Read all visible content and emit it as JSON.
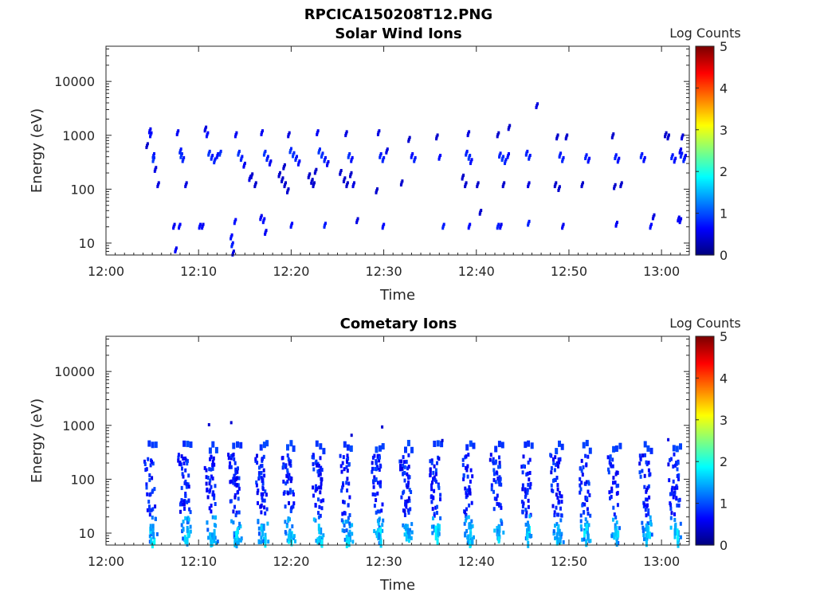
{
  "figure_title": "RPCICA150208T12.PNG",
  "colormap": "jet",
  "chart_data": [
    {
      "type": "heatmap",
      "title": "Solar Wind Ions",
      "xlabel": "Time",
      "ylabel": "Energy (eV)",
      "x_ticks": [
        "12:00",
        "12:10",
        "12:20",
        "12:30",
        "12:40",
        "12:50",
        "13:00"
      ],
      "x_range_minutes": [
        0,
        63
      ],
      "y_scale": "log",
      "y_range": [
        6,
        45000
      ],
      "y_ticks": [
        "10",
        "100",
        "1000",
        "10000"
      ],
      "y_tick_values": [
        10,
        100,
        1000,
        10000
      ],
      "colorbar": {
        "label": "Log Counts",
        "range": [
          0,
          5
        ],
        "ticks": [
          "0",
          "1",
          "2",
          "3",
          "4",
          "5"
        ]
      },
      "points": [
        [
          4.3,
          690,
          0.4
        ],
        [
          4.6,
          1300,
          0.6
        ],
        [
          4.7,
          1100,
          0.7
        ],
        [
          5.0,
          450,
          0.8
        ],
        [
          5.0,
          380,
          0.9
        ],
        [
          5.2,
          250,
          0.5
        ],
        [
          5.5,
          130,
          0.5
        ],
        [
          7.6,
          1200,
          0.6
        ],
        [
          7.9,
          550,
          0.8
        ],
        [
          8.0,
          450,
          0.9
        ],
        [
          8.2,
          380,
          0.8
        ],
        [
          8.5,
          130,
          0.5
        ],
        [
          10.6,
          1400,
          0.5
        ],
        [
          10.8,
          1100,
          0.7
        ],
        [
          11.0,
          500,
          0.9
        ],
        [
          11.3,
          420,
          0.8
        ],
        [
          11.6,
          360,
          0.8
        ],
        [
          11.9,
          450,
          0.7
        ],
        [
          12.2,
          500,
          0.9
        ],
        [
          13.9,
          1100,
          0.6
        ],
        [
          14.2,
          500,
          0.9
        ],
        [
          14.5,
          400,
          0.8
        ],
        [
          14.8,
          300,
          0.6
        ],
        [
          16.7,
          1200,
          0.6
        ],
        [
          17.0,
          500,
          0.9
        ],
        [
          17.3,
          400,
          0.8
        ],
        [
          17.6,
          330,
          0.6
        ],
        [
          19.6,
          1100,
          0.5
        ],
        [
          19.8,
          560,
          0.9
        ],
        [
          20.1,
          470,
          0.9
        ],
        [
          20.4,
          400,
          0.8
        ],
        [
          20.7,
          330,
          0.7
        ],
        [
          22.7,
          1200,
          0.6
        ],
        [
          22.9,
          550,
          0.9
        ],
        [
          23.2,
          460,
          0.9
        ],
        [
          23.5,
          380,
          0.8
        ],
        [
          23.8,
          320,
          0.6
        ],
        [
          25.8,
          1150,
          0.5
        ],
        [
          26.1,
          450,
          0.9
        ],
        [
          26.4,
          380,
          0.7
        ],
        [
          29.3,
          1200,
          0.5
        ],
        [
          29.5,
          450,
          0.8
        ],
        [
          29.8,
          380,
          0.8
        ],
        [
          30.2,
          550,
          0.5
        ],
        [
          32.6,
          900,
          0.4
        ],
        [
          32.9,
          450,
          0.7
        ],
        [
          33.2,
          380,
          0.8
        ],
        [
          35.6,
          1000,
          0.4
        ],
        [
          35.9,
          420,
          0.7
        ],
        [
          39.0,
          1150,
          0.5
        ],
        [
          38.8,
          500,
          0.8
        ],
        [
          39.1,
          420,
          0.9
        ],
        [
          39.3,
          350,
          0.7
        ],
        [
          42.2,
          1100,
          0.4
        ],
        [
          42.4,
          460,
          0.8
        ],
        [
          42.7,
          400,
          0.9
        ],
        [
          43.0,
          350,
          0.8
        ],
        [
          43.4,
          1500,
          0.4
        ],
        [
          43.3,
          450,
          0.7
        ],
        [
          45.3,
          500,
          0.8
        ],
        [
          45.6,
          420,
          0.8
        ],
        [
          46.4,
          3800,
          0.5
        ],
        [
          48.6,
          1000,
          0.4
        ],
        [
          48.9,
          460,
          0.8
        ],
        [
          49.2,
          380,
          0.8
        ],
        [
          49.6,
          1000,
          0.4
        ],
        [
          51.7,
          430,
          0.8
        ],
        [
          52.0,
          370,
          0.7
        ],
        [
          54.6,
          1050,
          0.4
        ],
        [
          54.9,
          430,
          0.8
        ],
        [
          55.2,
          370,
          0.7
        ],
        [
          57.7,
          450,
          0.8
        ],
        [
          58.0,
          380,
          0.7
        ],
        [
          60.3,
          1100,
          0.4
        ],
        [
          60.6,
          1000,
          0.4
        ],
        [
          61.0,
          430,
          0.8
        ],
        [
          61.3,
          370,
          0.7
        ],
        [
          62.1,
          1000,
          0.5
        ],
        [
          61.9,
          550,
          0.6
        ],
        [
          62.4,
          420,
          0.6
        ],
        [
          62.0,
          460,
          0.8
        ],
        [
          62.3,
          380,
          0.8
        ],
        [
          15.6,
          190,
          0.4
        ],
        [
          16.0,
          130,
          0.4
        ],
        [
          15.4,
          170,
          0.5
        ],
        [
          18.6,
          200,
          0.4
        ],
        [
          18.9,
          160,
          0.4
        ],
        [
          19.2,
          130,
          0.4
        ],
        [
          19.5,
          100,
          0.4
        ],
        [
          19.1,
          280,
          0.4
        ],
        [
          21.8,
          190,
          0.4
        ],
        [
          22.1,
          150,
          0.4
        ],
        [
          22.5,
          230,
          0.4
        ],
        [
          22.3,
          130,
          0.4
        ],
        [
          25.2,
          220,
          0.4
        ],
        [
          25.6,
          160,
          0.4
        ],
        [
          25.9,
          130,
          0.4
        ],
        [
          26.3,
          200,
          0.4
        ],
        [
          26.6,
          130,
          0.5
        ],
        [
          29.1,
          100,
          0.4
        ],
        [
          31.8,
          140,
          0.4
        ],
        [
          38.4,
          180,
          0.4
        ],
        [
          38.7,
          130,
          0.4
        ],
        [
          40.0,
          130,
          0.4
        ],
        [
          40.3,
          40,
          0.4
        ],
        [
          42.8,
          130,
          0.4
        ],
        [
          45.5,
          130,
          0.5
        ],
        [
          48.4,
          130,
          0.4
        ],
        [
          48.8,
          110,
          0.4
        ],
        [
          51.3,
          130,
          0.4
        ],
        [
          54.8,
          120,
          0.4
        ],
        [
          55.5,
          130,
          0.4
        ],
        [
          7.2,
          22,
          0.6
        ],
        [
          7.4,
          8,
          0.6
        ],
        [
          7.8,
          22,
          0.7
        ],
        [
          10.0,
          22,
          0.7
        ],
        [
          10.3,
          22,
          0.6
        ],
        [
          13.4,
          14,
          0.7
        ],
        [
          13.5,
          10,
          0.8
        ],
        [
          13.8,
          27,
          0.7
        ],
        [
          13.6,
          7,
          0.5
        ],
        [
          16.6,
          32,
          0.6
        ],
        [
          16.9,
          28,
          0.7
        ],
        [
          17.1,
          17,
          0.6
        ],
        [
          19.9,
          23,
          0.7
        ],
        [
          23.5,
          23,
          0.8
        ],
        [
          27.0,
          28,
          0.5
        ],
        [
          29.8,
          22,
          0.7
        ],
        [
          36.3,
          22,
          0.8
        ],
        [
          39.1,
          22,
          0.7
        ],
        [
          42.2,
          22,
          0.8
        ],
        [
          42.5,
          22,
          0.6
        ],
        [
          45.5,
          25,
          0.8
        ],
        [
          49.2,
          22,
          0.6
        ],
        [
          55.0,
          24,
          0.6
        ],
        [
          58.7,
          22,
          0.7
        ],
        [
          59.0,
          33,
          0.5
        ],
        [
          61.7,
          30,
          0.6
        ],
        [
          61.9,
          28,
          0.6
        ]
      ]
    },
    {
      "type": "heatmap",
      "title": "Cometary Ions",
      "xlabel": "Time",
      "ylabel": "Energy (eV)",
      "x_ticks": [
        "12:00",
        "12:10",
        "12:20",
        "12:30",
        "12:40",
        "12:50",
        "13:00"
      ],
      "x_range_minutes": [
        0,
        63
      ],
      "y_scale": "log",
      "y_range": [
        6,
        45000
      ],
      "y_ticks": [
        "10",
        "100",
        "1000",
        "10000"
      ],
      "y_tick_values": [
        10,
        100,
        1000,
        10000
      ],
      "colorbar": {
        "label": "Log Counts",
        "range": [
          0,
          5
        ],
        "ticks": [
          "0",
          "1",
          "2",
          "3",
          "4",
          "5"
        ]
      },
      "bursts": [
        [
          4.9,
          0.6
        ],
        [
          8.6,
          1.0
        ],
        [
          11.4,
          0.8
        ],
        [
          14.0,
          0.9
        ],
        [
          16.9,
          1.0
        ],
        [
          19.8,
          1.0
        ],
        [
          23.0,
          0.9
        ],
        [
          26.0,
          0.8
        ],
        [
          29.4,
          0.9
        ],
        [
          32.5,
          0.9
        ],
        [
          35.7,
          0.8
        ],
        [
          39.2,
          0.9
        ],
        [
          42.3,
          0.8
        ],
        [
          45.5,
          0.8
        ],
        [
          48.8,
          0.9
        ],
        [
          51.8,
          0.8
        ],
        [
          55.0,
          0.7
        ],
        [
          58.4,
          0.8
        ],
        [
          61.5,
          0.8
        ]
      ],
      "extra_points": [
        [
          11.0,
          1100,
          0.4
        ],
        [
          13.4,
          1200,
          0.4
        ],
        [
          29.7,
          1000,
          0.4
        ],
        [
          26.4,
          700,
          0.4
        ],
        [
          36.2,
          560,
          0.4
        ],
        [
          60.6,
          580,
          0.5
        ]
      ]
    }
  ]
}
